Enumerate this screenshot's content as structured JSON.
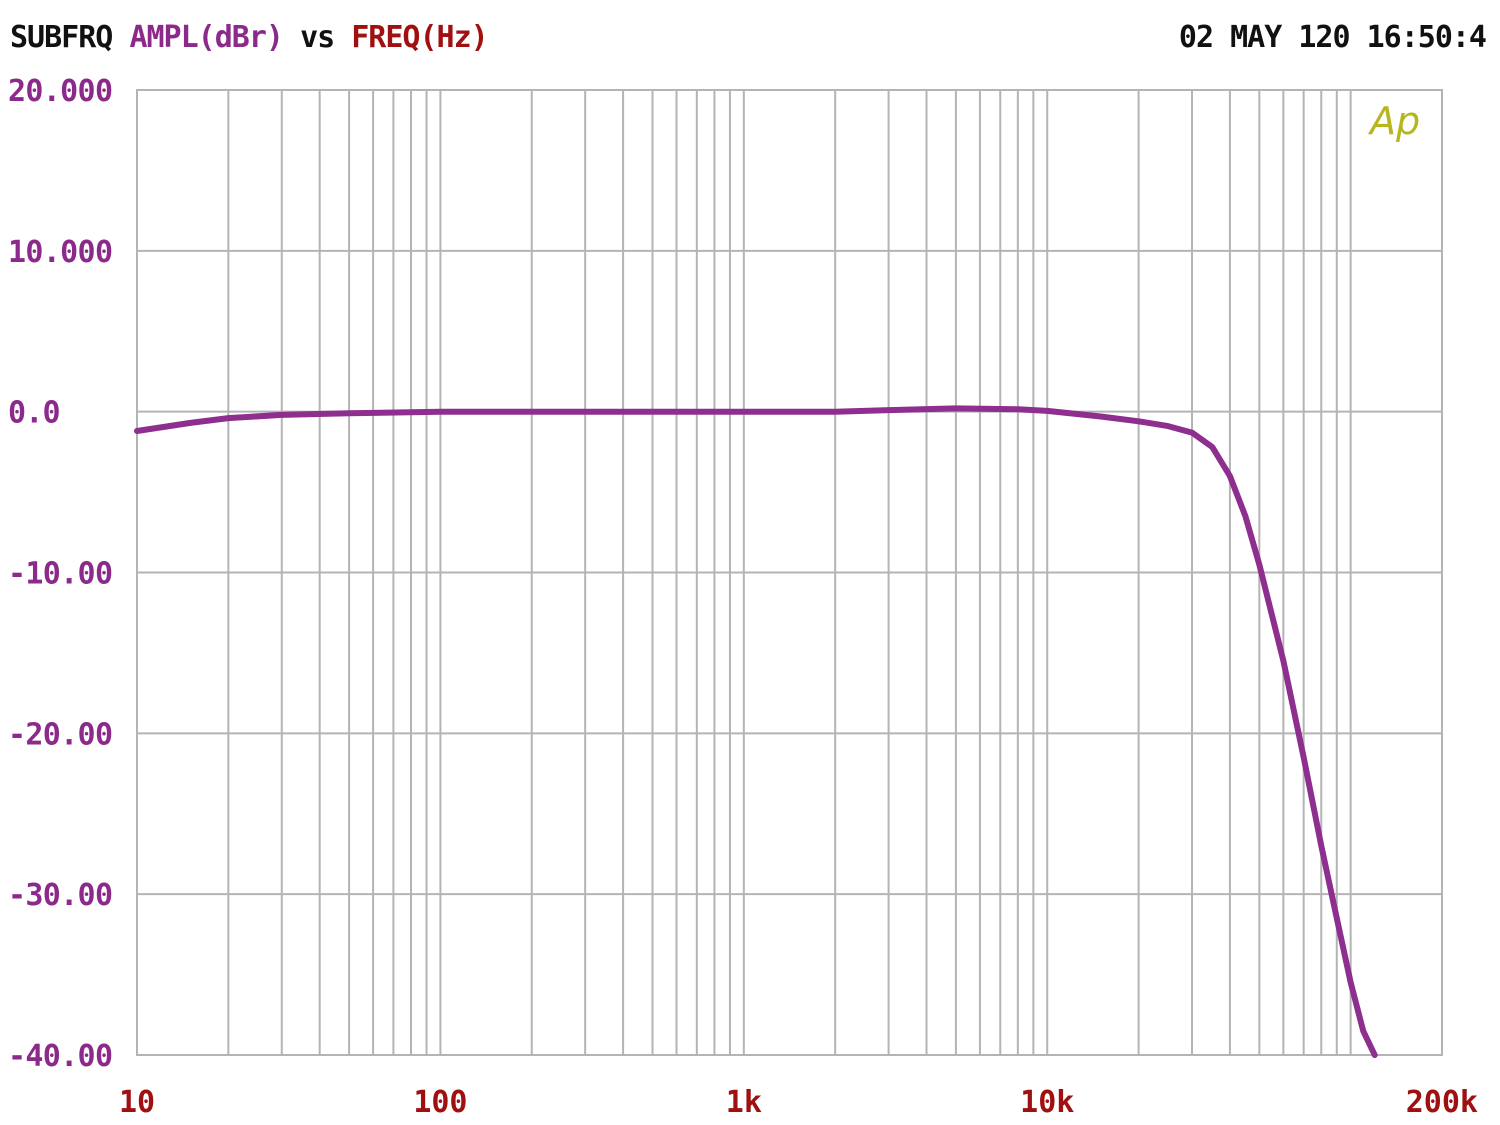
{
  "header": {
    "source": "SUBFRQ",
    "y_quantity": "AMPL(dBr)",
    "vs": "vs",
    "x_quantity": "FREQ(Hz)",
    "timestamp": "02 MAY 120 16:50:4"
  },
  "logo_text": "Ap",
  "colors": {
    "trace": "#8e2e8e",
    "y_labels": "#8b2a8b",
    "x_labels": "#a01010",
    "grid": "#b4b4b4",
    "header_black": "#111111",
    "logo": "#b6b61e"
  },
  "chart_data": {
    "type": "line",
    "x_scale": "log",
    "xlim": [
      10,
      200000
    ],
    "ylim": [
      -40,
      20
    ],
    "grid": true,
    "x_tick_labels": [
      {
        "value": 10,
        "label": "10"
      },
      {
        "value": 100,
        "label": "100"
      },
      {
        "value": 1000,
        "label": "1k"
      },
      {
        "value": 10000,
        "label": "10k"
      },
      {
        "value": 200000,
        "label": "200k"
      }
    ],
    "y_tick_labels": [
      {
        "value": 20,
        "label": "20.000"
      },
      {
        "value": 10,
        "label": "10.000"
      },
      {
        "value": 0,
        "label": "0.0"
      },
      {
        "value": -10,
        "label": "-10.00"
      },
      {
        "value": -20,
        "label": "-20.00"
      },
      {
        "value": -30,
        "label": "-30.00"
      },
      {
        "value": -40,
        "label": "-40.00"
      }
    ],
    "series": [
      {
        "x": [
          10,
          15,
          20,
          30,
          50,
          100,
          200,
          500,
          1000,
          2000,
          3000,
          5000,
          8000,
          10000,
          15000,
          20000,
          25000,
          30000,
          35000,
          40000,
          45000,
          50000,
          60000,
          70000,
          80000,
          90000,
          100000,
          110000,
          120000
        ],
        "y": [
          -1.2,
          -0.7,
          -0.4,
          -0.2,
          -0.1,
          0,
          0,
          0,
          0,
          0,
          0.1,
          0.2,
          0.15,
          0.05,
          -0.3,
          -0.6,
          -0.9,
          -1.3,
          -2.2,
          -4,
          -6.5,
          -9.5,
          -15.5,
          -21.5,
          -27,
          -31.5,
          -35.5,
          -38.5,
          -40
        ]
      }
    ]
  }
}
